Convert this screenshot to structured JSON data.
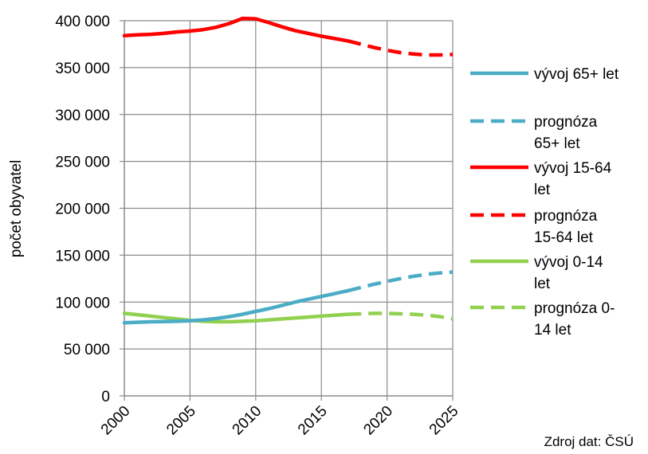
{
  "chart_data": {
    "type": "line",
    "ylabel": "počet obyvatel",
    "xlim": [
      2000,
      2025
    ],
    "ylim": [
      0,
      400000
    ],
    "x_ticks": [
      2000,
      2005,
      2010,
      2015,
      2020,
      2025
    ],
    "x_tick_labels": [
      "2000",
      "2005",
      "2010",
      "2015",
      "2020",
      "2025"
    ],
    "y_ticks": [
      0,
      50000,
      100000,
      150000,
      200000,
      250000,
      300000,
      350000,
      400000
    ],
    "y_tick_labels": [
      "0",
      "50 000",
      "100 000",
      "150 000",
      "200 000",
      "250 000",
      "300 000",
      "350 000",
      "400 000"
    ],
    "grid": true,
    "legend_position": "right",
    "source_note": "Zdroj dat: ČSÚ",
    "series": [
      {
        "name": "vývoj 65+ let",
        "legend_lines": [
          "vývoj 65+ let"
        ],
        "color": "#4bacc6",
        "style": "solid",
        "x": [
          2000,
          2001,
          2002,
          2003,
          2004,
          2005,
          2006,
          2007,
          2008,
          2009,
          2010,
          2011,
          2012,
          2013,
          2014,
          2015,
          2016,
          2017
        ],
        "values": [
          78000,
          78500,
          79000,
          79200,
          79500,
          80000,
          81000,
          82500,
          84500,
          87000,
          90000,
          93000,
          96500,
          100000,
          103000,
          106000,
          109000,
          112000
        ]
      },
      {
        "name": "prognóza 65+ let",
        "legend_lines": [
          "prognóza",
          "65+ let"
        ],
        "color": "#4bacc6",
        "style": "dashed",
        "x": [
          2017,
          2018,
          2019,
          2020,
          2021,
          2022,
          2023,
          2024,
          2025
        ],
        "values": [
          112000,
          115500,
          119000,
          122000,
          125000,
          127500,
          129500,
          131000,
          132000
        ]
      },
      {
        "name": "vývoj 15-64 let",
        "legend_lines": [
          "vývoj 15-64",
          "let"
        ],
        "color": "#ff0000",
        "style": "solid",
        "x": [
          2000,
          2001,
          2002,
          2003,
          2004,
          2005,
          2006,
          2007,
          2008,
          2009,
          2010,
          2011,
          2012,
          2013,
          2014,
          2015,
          2016,
          2017
        ],
        "values": [
          384000,
          385000,
          385500,
          386500,
          388000,
          389000,
          390500,
          393000,
          397000,
          402500,
          402000,
          398000,
          393500,
          389500,
          386500,
          383500,
          381000,
          378500
        ]
      },
      {
        "name": "prognóza 15-64 let",
        "legend_lines": [
          "prognóza",
          "15-64 let"
        ],
        "color": "#ff0000",
        "style": "dashed",
        "x": [
          2017,
          2018,
          2019,
          2020,
          2021,
          2022,
          2023,
          2024,
          2025
        ],
        "values": [
          378500,
          375000,
          371500,
          368500,
          366000,
          364500,
          363500,
          363500,
          364000
        ]
      },
      {
        "name": "vývoj 0-14 let",
        "legend_lines": [
          "vývoj 0-14",
          "let"
        ],
        "color": "#92d050",
        "style": "solid",
        "x": [
          2000,
          2001,
          2002,
          2003,
          2004,
          2005,
          2006,
          2007,
          2008,
          2009,
          2010,
          2011,
          2012,
          2013,
          2014,
          2015,
          2016,
          2017
        ],
        "values": [
          88000,
          86500,
          85000,
          83500,
          82000,
          80500,
          79500,
          79000,
          79000,
          79500,
          80000,
          81000,
          82000,
          83000,
          84000,
          85000,
          86000,
          87000
        ]
      },
      {
        "name": "prognóza 0-14 let",
        "legend_lines": [
          "prognóza 0-",
          "14 let"
        ],
        "color": "#92d050",
        "style": "dashed",
        "x": [
          2017,
          2018,
          2019,
          2020,
          2021,
          2022,
          2023,
          2024,
          2025
        ],
        "values": [
          87000,
          87500,
          88000,
          88000,
          87500,
          87000,
          86000,
          84500,
          82000
        ]
      }
    ]
  }
}
